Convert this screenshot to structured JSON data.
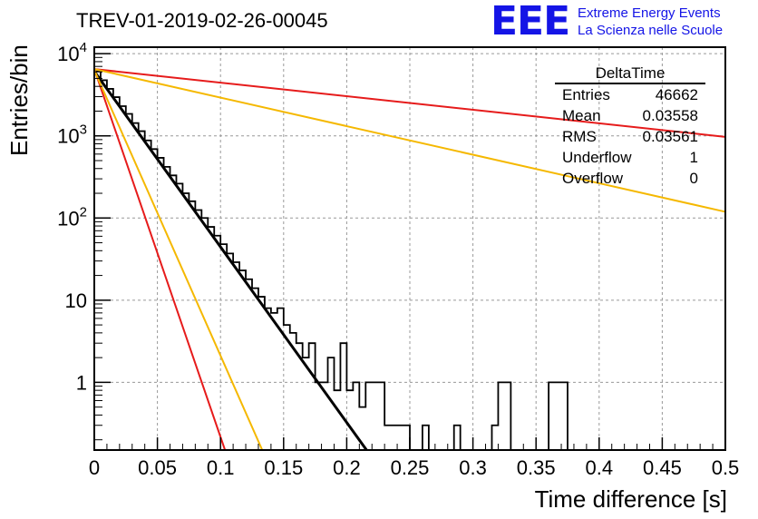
{
  "header": {
    "title": "TREV-01-2019-02-26-00045",
    "logo_text": "EEE",
    "logo_line1": "Extreme Energy Events",
    "logo_line2": "La Scienza nelle Scuole"
  },
  "stats_box": {
    "name": "DeltaTime",
    "rows": [
      {
        "label": "Entries",
        "value": "46662"
      },
      {
        "label": "Mean",
        "value": "0.03558"
      },
      {
        "label": "RMS",
        "value": "0.03561"
      },
      {
        "label": "Underflow",
        "value": "1"
      },
      {
        "label": "Overflow",
        "value": "0"
      }
    ]
  },
  "chart_data": {
    "type": "histogram",
    "title": "TREV-01-2019-02-26-00045",
    "xlabel": "Time difference [s]",
    "ylabel": "Entries/bin",
    "xlim": [
      0,
      0.5
    ],
    "ylim": [
      0.15,
      12000
    ],
    "y_scale": "log",
    "grid": true,
    "x_ticks": [
      "0",
      "0.05",
      "0.1",
      "0.15",
      "0.2",
      "0.25",
      "0.3",
      "0.35",
      "0.4",
      "0.45",
      "0.5"
    ],
    "y_ticks": [
      {
        "value": 1,
        "label": "1"
      },
      {
        "value": 10,
        "label": "10"
      },
      {
        "value": 100,
        "label": "10^2"
      },
      {
        "value": 1000,
        "label": "10^3"
      },
      {
        "value": 10000,
        "label": "10^4"
      }
    ],
    "bin_width": 0.005,
    "histogram": [
      6100,
      4750,
      3730,
      2960,
      2300,
      1850,
      1430,
      1140,
      880,
      690,
      540,
      420,
      330,
      262,
      200,
      160,
      125,
      100,
      78,
      61,
      48,
      37,
      29,
      23,
      18,
      14,
      11,
      8,
      7,
      8,
      5,
      4,
      3,
      2,
      3,
      1,
      1,
      2,
      0.8,
      3,
      0.8,
      1,
      0.5,
      1,
      1,
      1,
      0.3,
      0.3,
      0.3,
      0.3,
      0.15,
      0.15,
      0.3,
      0.15,
      0.15,
      0.15,
      0.15,
      0.3,
      0.15,
      0.15,
      0.15,
      0.15,
      0.15,
      0.3,
      1,
      1,
      0.15,
      0.15,
      0.15,
      0.15,
      0.15,
      0.15,
      1,
      1,
      1,
      0.15,
      0.15
    ],
    "fits": [
      {
        "color": "#000000",
        "amplitude": 6100,
        "slope": 49.2,
        "x_end": 0.38
      },
      {
        "color": "#e61b1b",
        "amplitude": 6500,
        "slope": 103.1,
        "x_end": 0.11
      },
      {
        "color": "#f5b800",
        "amplitude": 6300,
        "slope": 80,
        "x_end": 0.14
      },
      {
        "color": "#e61b1b",
        "amplitude": 6500,
        "slope": 3.8,
        "x_end": 0.5
      },
      {
        "color": "#f5b800",
        "amplitude": 6500,
        "slope": 8,
        "x_end": 0.5
      }
    ]
  }
}
